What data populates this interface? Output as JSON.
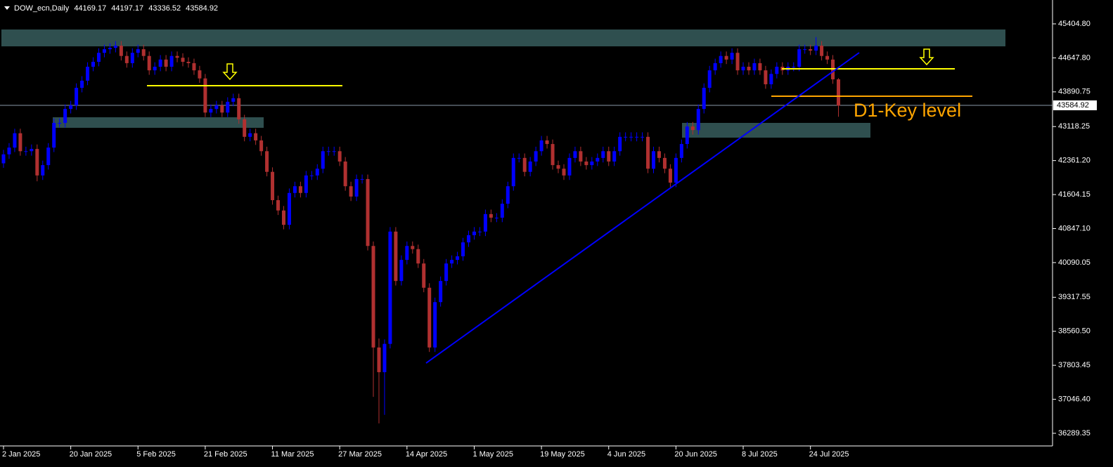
{
  "chart_data": {
    "type": "candlestick",
    "title": "DOW_ecn,Daily",
    "annotation": "D1-Key level",
    "up_color": "#0000ff",
    "down_color": "#b03030",
    "ylim": [
      36008,
      45936
    ],
    "yticks": [
      {
        "value": 45404.8,
        "label": "45404.80"
      },
      {
        "value": 44647.8,
        "label": "44647.80"
      },
      43890.75,
      43118.25,
      {
        "value": 42361.2,
        "label": "42361.20"
      },
      41604.15,
      {
        "value": 40847.1,
        "label": "40847.10"
      },
      40090.05,
      39317.55,
      {
        "value": 38560.5,
        "label": "38560.50"
      },
      37803.45,
      {
        "value": 37046.4,
        "label": "37046.40"
      },
      36289.35
    ],
    "categories": [
      "2 Jan 2025",
      null,
      null,
      null,
      null,
      null,
      null,
      null,
      null,
      null,
      null,
      null,
      "20 Jan 2025",
      null,
      null,
      null,
      null,
      null,
      null,
      null,
      null,
      null,
      null,
      null,
      "5 Feb 2025",
      null,
      null,
      null,
      null,
      null,
      null,
      null,
      null,
      null,
      null,
      null,
      "21 Feb 2025",
      null,
      null,
      null,
      null,
      null,
      null,
      null,
      null,
      null,
      null,
      null,
      "11 Mar 2025",
      null,
      null,
      null,
      null,
      null,
      null,
      null,
      null,
      null,
      null,
      null,
      "27 Mar 2025",
      null,
      null,
      null,
      null,
      null,
      null,
      null,
      null,
      null,
      null,
      null,
      "14 Apr 2025",
      null,
      null,
      null,
      null,
      null,
      null,
      null,
      null,
      null,
      null,
      null,
      "1 May 2025",
      null,
      null,
      null,
      null,
      null,
      null,
      null,
      null,
      null,
      null,
      null,
      "19 May 2025",
      null,
      null,
      null,
      null,
      null,
      null,
      null,
      null,
      null,
      null,
      null,
      "4 Jun 2025",
      null,
      null,
      null,
      null,
      null,
      null,
      null,
      null,
      null,
      null,
      null,
      "20 Jun 2025",
      null,
      null,
      null,
      null,
      null,
      null,
      null,
      null,
      null,
      null,
      null,
      "8 Jul 2025",
      null,
      null,
      null,
      null,
      null,
      null,
      null,
      null,
      null,
      null,
      null,
      "24 Jul 2025",
      null,
      null,
      null,
      null,
      null
    ],
    "open": [
      42300,
      42500,
      42650,
      42970,
      42570,
      42570,
      42620,
      42030,
      42260,
      42650,
      43200,
      43200,
      43510,
      43590,
      43980,
      44140,
      44450,
      44560,
      44760,
      44840,
      44870,
      44920,
      44690,
      44530,
      44760,
      44840,
      44690,
      44370,
      44450,
      44610,
      44450,
      44690,
      44650,
      44560,
      44530,
      44370,
      44190,
      43430,
      43510,
      43590,
      43430,
      43670,
      43750,
      43280,
      42890,
      42970,
      42810,
      42570,
      42110,
      41480,
      41250,
      40930,
      41640,
      41790,
      41640,
      42030,
      42030,
      42180,
      42570,
      42570,
      42570,
      42340,
      41790,
      41560,
      41950,
      41950,
      40460,
      38200,
      37650,
      38280,
      40780,
      39680,
      40150,
      40460,
      40390,
      40070,
      39530,
      38200,
      39210,
      39680,
      40070,
      40150,
      40230,
      40540,
      40700,
      40780,
      40780,
      41170,
      41090,
      41090,
      41400,
      41790,
      42420,
      42420,
      42110,
      42340,
      42570,
      42810,
      42730,
      42260,
      42180,
      42030,
      42420,
      42570,
      42340,
      42260,
      42340,
      42420,
      42570,
      42340,
      42570,
      42890,
      42890,
      42890,
      42890,
      42890,
      42180,
      42570,
      42420,
      42180,
      41870,
      42420,
      42730,
      43120,
      43040,
      43510,
      43980,
      44370,
      44530,
      44690,
      44610,
      44760,
      44370,
      44450,
      44370,
      44530,
      44370,
      44060,
      44290,
      44450,
      44370,
      44450,
      44450,
      44840,
      44840,
      44810,
      44920,
      44690,
      44610,
      44169.17
    ],
    "high": [
      42600,
      42750,
      43070,
      43070,
      42670,
      42720,
      42720,
      42360,
      42750,
      43300,
      43300,
      43610,
      43690,
      44080,
      44240,
      44550,
      44660,
      44860,
      44940,
      44970,
      45020,
      45020,
      44790,
      44860,
      44940,
      44940,
      44790,
      44550,
      44710,
      44710,
      44790,
      44790,
      44750,
      44660,
      44630,
      44470,
      44290,
      43610,
      43690,
      43690,
      43770,
      43850,
      43850,
      43380,
      43070,
      43070,
      42910,
      42670,
      42210,
      41580,
      41350,
      41740,
      41890,
      41890,
      42130,
      42130,
      42280,
      42670,
      42670,
      42670,
      42670,
      42440,
      41890,
      42050,
      42050,
      42050,
      40560,
      38400,
      38380,
      40880,
      40880,
      40250,
      40560,
      40560,
      40490,
      40170,
      39630,
      39310,
      39780,
      40170,
      40250,
      40330,
      40640,
      40800,
      40880,
      40880,
      41270,
      41270,
      41190,
      41500,
      41890,
      42520,
      42520,
      42520,
      42440,
      42670,
      42910,
      42910,
      42830,
      42360,
      42280,
      42520,
      42670,
      42670,
      42440,
      42440,
      42520,
      42670,
      42670,
      42670,
      42990,
      42990,
      42990,
      42990,
      42990,
      42990,
      42670,
      42670,
      42520,
      42280,
      42520,
      42830,
      43220,
      43220,
      43610,
      44080,
      44470,
      44630,
      44790,
      44790,
      44860,
      44860,
      44550,
      44550,
      44630,
      44630,
      44470,
      44390,
      44550,
      44550,
      44550,
      44550,
      44940,
      44940,
      44940,
      45110,
      45020,
      44790,
      44710,
      44197.17
    ],
    "low": [
      42200,
      42400,
      42550,
      42470,
      42470,
      42470,
      41900,
      41930,
      42160,
      42550,
      43100,
      43100,
      43410,
      43490,
      43880,
      44040,
      44350,
      44460,
      44660,
      44740,
      44770,
      44590,
      44430,
      44430,
      44660,
      44590,
      44270,
      44270,
      44350,
      44350,
      44350,
      44550,
      44460,
      44430,
      44270,
      44090,
      43330,
      43330,
      43410,
      43330,
      43330,
      43570,
      43180,
      42790,
      42790,
      42710,
      42470,
      42010,
      41380,
      41150,
      40830,
      40830,
      41540,
      41540,
      41540,
      41930,
      41930,
      42080,
      42470,
      42470,
      42240,
      41690,
      41460,
      41460,
      41850,
      40360,
      37100,
      36510,
      36700,
      38180,
      39580,
      39580,
      40050,
      40290,
      39970,
      39430,
      38100,
      38100,
      39110,
      39580,
      39970,
      40050,
      40130,
      40440,
      40600,
      40680,
      40680,
      40990,
      40990,
      40990,
      41300,
      41690,
      42320,
      42010,
      42010,
      42240,
      42470,
      42630,
      42160,
      42080,
      41930,
      41930,
      42320,
      42240,
      42160,
      42160,
      42240,
      42320,
      42240,
      42240,
      42470,
      42790,
      42790,
      42790,
      42790,
      42080,
      42080,
      42320,
      42080,
      41770,
      41770,
      42320,
      42630,
      42940,
      42940,
      43410,
      43880,
      44270,
      44430,
      44510,
      44510,
      44270,
      44270,
      44270,
      44270,
      44270,
      43960,
      43960,
      44190,
      44270,
      44270,
      44350,
      44350,
      44740,
      44710,
      44710,
      44590,
      44510,
      44070,
      43336.52
    ],
    "close": [
      42500,
      42650,
      42970,
      42570,
      42570,
      42620,
      42030,
      42260,
      42650,
      43200,
      43200,
      43510,
      43590,
      43980,
      44140,
      44450,
      44560,
      44760,
      44840,
      44870,
      44920,
      44690,
      44530,
      44760,
      44840,
      44690,
      44370,
      44450,
      44610,
      44450,
      44690,
      44650,
      44560,
      44530,
      44370,
      44190,
      43430,
      43510,
      43590,
      43430,
      43670,
      43750,
      43280,
      42890,
      42970,
      42810,
      42570,
      42110,
      41480,
      41250,
      40930,
      41640,
      41790,
      41640,
      42030,
      42030,
      42180,
      42570,
      42570,
      42570,
      42340,
      41790,
      41560,
      41950,
      41950,
      40460,
      38200,
      37650,
      38280,
      40780,
      39680,
      40150,
      40460,
      40390,
      40070,
      39530,
      38200,
      39210,
      39680,
      40070,
      40150,
      40230,
      40540,
      40700,
      40780,
      40780,
      41170,
      41090,
      41090,
      41400,
      41790,
      42420,
      42420,
      42110,
      42340,
      42570,
      42810,
      42730,
      42260,
      42180,
      42030,
      42420,
      42570,
      42340,
      42260,
      42340,
      42420,
      42570,
      42340,
      42570,
      42890,
      42890,
      42890,
      42890,
      42890,
      42180,
      42570,
      42420,
      42180,
      41870,
      42420,
      42730,
      43120,
      43040,
      43510,
      43980,
      44370,
      44530,
      44690,
      44610,
      44760,
      44370,
      44450,
      44370,
      44530,
      44370,
      44060,
      44290,
      44450,
      44370,
      44450,
      44450,
      44840,
      44840,
      44810,
      44920,
      44690,
      44610,
      44170,
      43584.92
    ]
  }
}
